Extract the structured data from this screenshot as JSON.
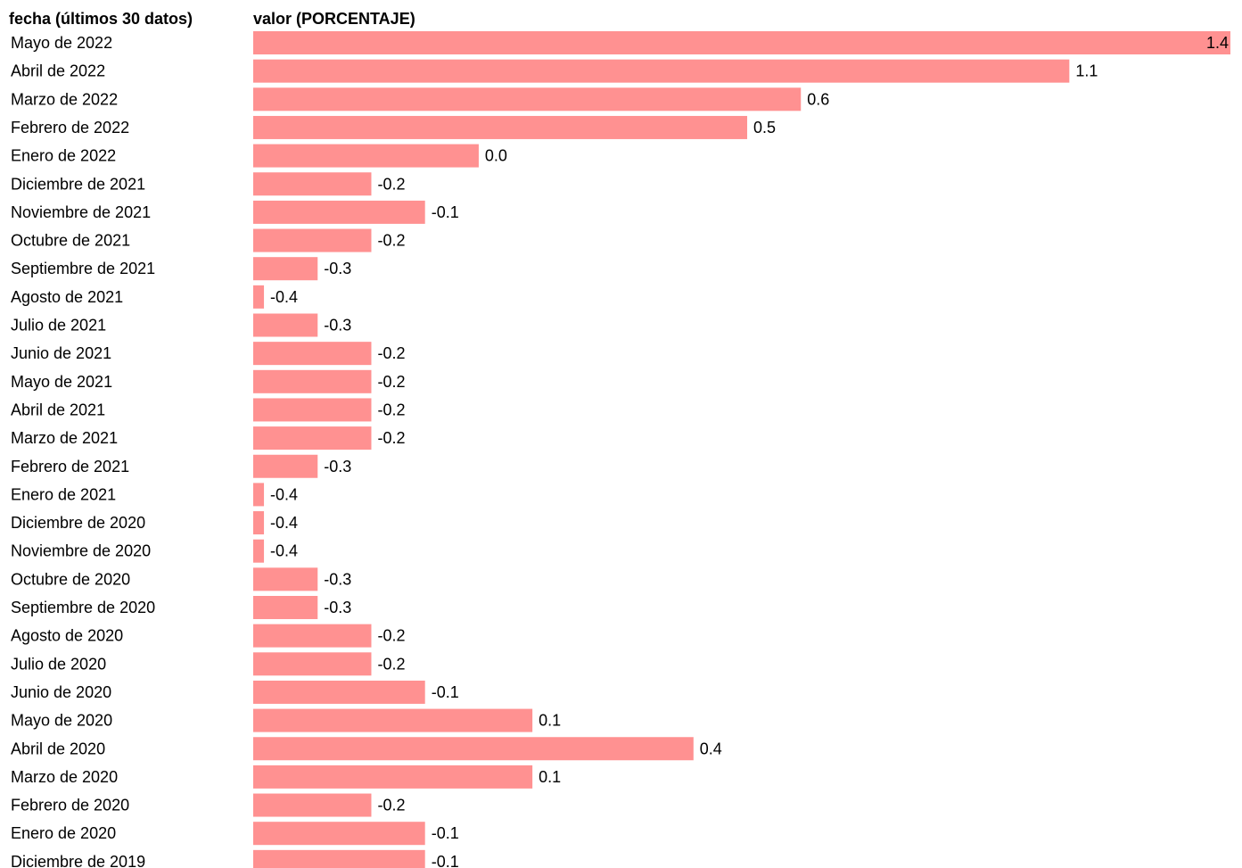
{
  "chart_data": {
    "type": "bar",
    "orientation": "horizontal",
    "category_header": "fecha (últimos 30 datos)",
    "value_header": "valor (PORCENTAJE)",
    "bar_color": "#ff9191",
    "categories": [
      "Mayo de 2022",
      "Abril de 2022",
      "Marzo de 2022",
      "Febrero de 2022",
      "Enero de 2022",
      "Diciembre de 2021",
      "Noviembre de 2021",
      "Octubre de 2021",
      "Septiembre de 2021",
      "Agosto de 2021",
      "Julio de 2021",
      "Junio de 2021",
      "Mayo de 2021",
      "Abril de 2021",
      "Marzo de 2021",
      "Febrero de 2021",
      "Enero de 2021",
      "Diciembre de 2020",
      "Noviembre de 2020",
      "Octubre de 2020",
      "Septiembre de 2020",
      "Agosto de 2020",
      "Julio de 2020",
      "Junio de 2020",
      "Mayo de 2020",
      "Abril de 2020",
      "Marzo de 2020",
      "Febrero de 2020",
      "Enero de 2020",
      "Diciembre de 2019"
    ],
    "values": [
      1.4,
      1.1,
      0.6,
      0.5,
      0.0,
      -0.2,
      -0.1,
      -0.2,
      -0.3,
      -0.4,
      -0.3,
      -0.2,
      -0.2,
      -0.2,
      -0.2,
      -0.3,
      -0.4,
      -0.4,
      -0.4,
      -0.3,
      -0.3,
      -0.2,
      -0.2,
      -0.1,
      0.1,
      0.4,
      0.1,
      -0.2,
      -0.1,
      -0.1
    ],
    "labels": [
      "1.4",
      "1.1",
      "0.6",
      "0.5",
      "0.0",
      "-0.2",
      "-0.1",
      "-0.2",
      "-0.3",
      "-0.4",
      "-0.3",
      "-0.2",
      "-0.2",
      "-0.2",
      "-0.2",
      "-0.3",
      "-0.4",
      "-0.4",
      "-0.4",
      "-0.3",
      "-0.3",
      "-0.2",
      "-0.2",
      "-0.1",
      "0.1",
      "0.4",
      "0.1",
      "-0.2",
      "-0.1",
      "-0.1"
    ],
    "xlim": [
      -0.42,
      1.4
    ],
    "grid": false,
    "legend": "none"
  }
}
